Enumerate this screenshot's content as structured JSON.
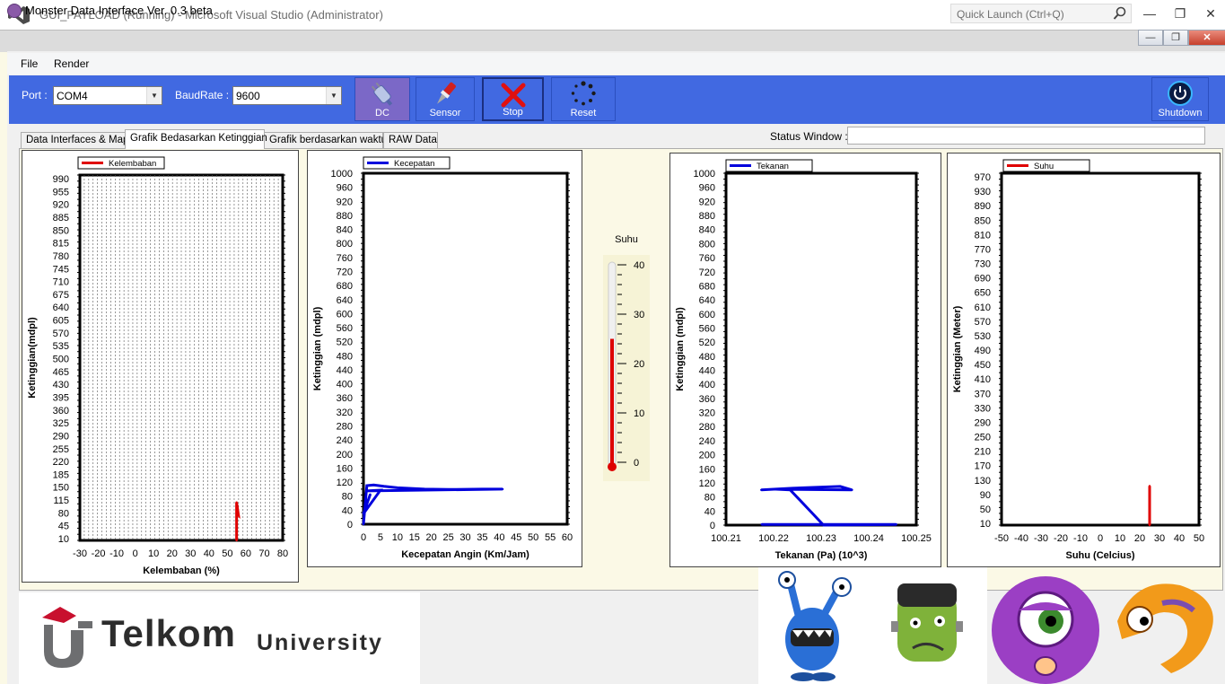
{
  "vs": {
    "title": "GUI_PAYLOAD (Running) - Microsoft Visual Studio (Administrator)",
    "quick_launch_placeholder": "Quick Launch (Ctrl+Q)"
  },
  "app": {
    "title": "Monster Data Interface Ver. 0.3 beta"
  },
  "menu": {
    "file": "File",
    "render": "Render"
  },
  "toolbar": {
    "port_label": "Port :",
    "port_value": "COM4",
    "baud_label": "BaudRate :",
    "baud_value": "9600",
    "dc_label": "DC",
    "sensor_label": "Sensor",
    "stop_label": "Stop",
    "reset_label": "Reset",
    "shutdown_label": "Shutdown"
  },
  "tabs": [
    {
      "label": "Data Interfaces & Map"
    },
    {
      "label": "Grafik Bedasarkan Ketinggian"
    },
    {
      "label": "Grafik berdasarkan waktu"
    },
    {
      "label": "RAW Data"
    }
  ],
  "status": {
    "label": "Status Window :",
    "value": ""
  },
  "thermometer": {
    "label": "Suhu",
    "ticks": [
      "40",
      "30",
      "20",
      "10",
      "0"
    ],
    "min": 0,
    "max": 40,
    "value": 25
  },
  "branding": {
    "logo_text": "Telkom",
    "logo_sub": "University"
  },
  "colors": {
    "toolbar": "#4169e1",
    "red_series": "#e00000",
    "blue_series": "#0000dd"
  },
  "chart_data": [
    {
      "type": "line",
      "legend": "Kelembaban",
      "xlabel": "Kelembaban (%)",
      "ylabel": "Ketinggian(mdpl)",
      "xlim": [
        -30,
        80
      ],
      "xticks": [
        "-30",
        "-20",
        "-10",
        "0",
        "10",
        "20",
        "30",
        "40",
        "50",
        "60",
        "70",
        "80"
      ],
      "ylim": [
        10,
        1020
      ],
      "yticks": [
        "990",
        "955",
        "920",
        "885",
        "850",
        "815",
        "780",
        "745",
        "710",
        "675",
        "640",
        "605",
        "570",
        "535",
        "500",
        "465",
        "430",
        "395",
        "360",
        "325",
        "290",
        "255",
        "220",
        "185",
        "150",
        "115",
        "80",
        "45",
        "10"
      ],
      "grid": true,
      "series": [
        {
          "name": "Kelembaban",
          "color": "#e00000",
          "x": [
            55,
            55,
            55,
            56,
            55
          ],
          "y": [
            10,
            60,
            115,
            80,
            85
          ]
        }
      ]
    },
    {
      "type": "line",
      "legend": "Kecepatan",
      "xlabel": "Kecepatan Angin (Km/Jam)",
      "ylabel": "Ketinggian (mdpl)",
      "xlim": [
        0,
        60
      ],
      "xticks": [
        "0",
        "5",
        "10",
        "15",
        "20",
        "25",
        "30",
        "35",
        "40",
        "45",
        "50",
        "55",
        "60"
      ],
      "ylim": [
        0,
        1000
      ],
      "yticks": [
        "1000",
        "960",
        "920",
        "880",
        "840",
        "800",
        "760",
        "720",
        "680",
        "640",
        "600",
        "560",
        "520",
        "480",
        "440",
        "400",
        "360",
        "320",
        "280",
        "240",
        "200",
        "160",
        "120",
        "80",
        "40",
        "0"
      ],
      "grid": false,
      "series": [
        {
          "name": "Kecepatan",
          "color": "#0000dd",
          "x": [
            0,
            1,
            3,
            6,
            10,
            18,
            25,
            35,
            41,
            1,
            5,
            0,
            2
          ],
          "y": [
            0,
            110,
            112,
            108,
            104,
            100,
            99,
            100,
            100,
            95,
            97,
            30,
            85
          ]
        }
      ]
    },
    {
      "type": "line",
      "legend": "Tekanan",
      "xlabel": "Tekanan (Pa) (10^3)",
      "ylabel": "Ketinggian (mdpl)",
      "xlim": [
        100.21,
        100.25
      ],
      "xticks": [
        "100.21",
        "100.22",
        "100.23",
        "100.24",
        "100.25"
      ],
      "ylim": [
        0,
        1000
      ],
      "yticks": [
        "1000",
        "960",
        "920",
        "880",
        "840",
        "800",
        "760",
        "720",
        "680",
        "640",
        "600",
        "560",
        "520",
        "480",
        "440",
        "400",
        "360",
        "320",
        "280",
        "240",
        "200",
        "160",
        "120",
        "80",
        "40",
        "0"
      ],
      "grid": false,
      "series": [
        {
          "name": "Tekanan",
          "color": "#0000dd",
          "x": [
            100.2174,
            100.224,
            100.234,
            100.2365,
            100.2205,
            100.2235,
            100.2305,
            100.2458,
            100.2175
          ],
          "y": [
            100,
            105,
            110,
            100,
            102,
            100,
            0,
            2,
            2
          ]
        }
      ]
    },
    {
      "type": "line",
      "legend": "Suhu",
      "xlabel": "Suhu (Celcius)",
      "ylabel": "Ketinggian (Meter)",
      "xlim": [
        -50,
        50
      ],
      "xticks": [
        "-50",
        "-40",
        "-30",
        "-20",
        "-10",
        "0",
        "10",
        "20",
        "30",
        "40",
        "50"
      ],
      "ylim": [
        10,
        1000
      ],
      "yticks": [
        "970",
        "930",
        "890",
        "850",
        "810",
        "770",
        "730",
        "690",
        "650",
        "610",
        "570",
        "530",
        "490",
        "450",
        "410",
        "370",
        "330",
        "290",
        "250",
        "210",
        "170",
        "130",
        "90",
        "50",
        "10"
      ],
      "grid": false,
      "series": [
        {
          "name": "Suhu",
          "color": "#e00000",
          "x": [
            25,
            25
          ],
          "y": [
            10,
            120
          ]
        }
      ]
    }
  ]
}
